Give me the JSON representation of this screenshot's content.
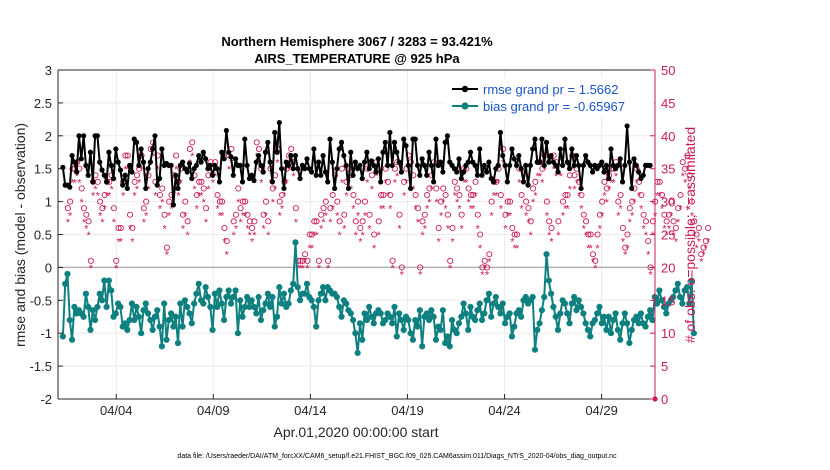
{
  "chart_data": {
    "type": "line",
    "title": "Northern Hemisphere 3067 / 3283 = 93.421%",
    "subtitle": "AIRS_TEMPERATURE @ 925 hPa",
    "xlabel": "Apr.01,2020 00:00:00 start",
    "ylabel": "rmse and bias (model - observation)",
    "y2label": "# of obs: o=possible; *=assimilated",
    "footer": "data file: /Users/raeder/DAI/ATM_forcXX/CAM6_setup/f.e21.FHIST_BGC.f09_025.CAM6assim.011/Diags_NTrS_2020-04/obs_diag_output.nc",
    "xlim": [
      1,
      31.75
    ],
    "ylim": [
      -2,
      3
    ],
    "y2lim": [
      0,
      50
    ],
    "x_ticks": [
      {
        "value": 4,
        "label": "04/04"
      },
      {
        "value": 9,
        "label": "04/09"
      },
      {
        "value": 14,
        "label": "04/14"
      },
      {
        "value": 19,
        "label": "04/19"
      },
      {
        "value": 24,
        "label": "04/24"
      },
      {
        "value": 29,
        "label": "04/29"
      }
    ],
    "y_ticks": [
      "-2",
      "-1.5",
      "-1",
      "-0.5",
      "0",
      "0.5",
      "1",
      "1.5",
      "2",
      "2.5",
      "3"
    ],
    "y2_ticks": [
      "0",
      "5",
      "10",
      "15",
      "20",
      "25",
      "30",
      "35",
      "40",
      "45",
      "50"
    ],
    "legend": [
      {
        "label": "rmse grand pr = 1.5662",
        "color": "#000000"
      },
      {
        "label": "bias grand pr = -0.65967",
        "color": "#0f8080"
      }
    ],
    "colors": {
      "rmse": "#000000",
      "bias": "#0f8080",
      "obs": "#cc1a5c",
      "zero": "#b3b3b3",
      "grid": "#ebebeb"
    },
    "rmse": [
      1.52,
      1.25,
      1.25,
      1.22,
      1.7,
      1.6,
      1.45,
      2.0,
      1.65,
      2.0,
      1.55,
      1.4,
      1.75,
      1.3,
      2.0,
      2.0,
      1.6,
      1.48,
      1.4,
      1.3,
      1.75,
      1.55,
      1.35,
      1.8,
      1.6,
      1.48,
      1.25,
      1.4,
      1.2,
      1.55,
      1.45,
      1.95,
      1.9,
      1.55,
      1.8,
      1.6,
      1.2,
      1.5,
      1.6,
      1.8,
      2.0,
      1.25,
      1.35,
      1.8,
      1.55,
      1.58,
      1.55,
      1.55,
      0.95,
      1.4,
      1.2,
      1.55,
      1.6,
      1.5,
      1.45,
      1.58,
      1.35,
      1.5,
      1.55,
      1.7,
      1.6,
      1.75,
      1.65,
      1.5,
      1.55,
      1.4,
      1.55,
      1.5,
      1.3,
      1.75,
      1.65,
      2.08,
      1.75,
      1.68,
      1.4,
      1.65,
      1.55,
      1.55,
      1.3,
      1.95,
      1.55,
      1.35,
      1.4,
      1.32,
      1.6,
      1.7,
      1.55,
      1.45,
      1.75,
      1.9,
      1.6,
      1.3,
      2.05,
      1.75,
      2.2,
      1.5,
      1.2,
      1.6,
      1.55,
      1.7,
      1.5,
      1.7,
      1.5,
      1.35,
      1.55,
      1.5,
      1.65,
      1.5,
      1.45,
      1.8,
      1.4,
      1.6,
      1.4,
      1.7,
      1.45,
      1.3,
      1.95,
      1.6,
      1.2,
      1.5,
      1.8,
      1.9,
      1.7,
      1.55,
      1.2,
      1.75,
      1.4,
      1.6,
      1.5,
      1.55,
      1.35,
      1.6,
      1.75,
      1.5,
      1.62,
      1.55,
      1.45,
      1.65,
      1.3,
      1.75,
      1.9,
      1.55,
      2.05,
      1.55,
      1.9,
      1.75,
      1.6,
      1.45,
      1.95,
      1.85,
      1.55,
      1.2,
      1.95,
      1.95,
      1.55,
      1.4,
      1.65,
      1.55,
      1.4,
      1.75,
      1.55,
      1.3,
      1.95,
      1.55,
      1.6,
      1.45,
      1.9,
      2.0,
      1.6,
      1.55,
      1.5,
      1.45,
      1.65,
      1.35,
      1.45,
      1.55,
      1.6,
      1.75,
      1.6,
      1.55,
      1.4,
      1.8,
      1.4,
      1.55,
      1.45,
      1.6,
      1.35,
      1.3,
      1.5,
      1.55,
      2.05,
      1.7,
      1.55,
      1.3,
      1.55,
      1.8,
      1.65,
      1.55,
      1.7,
      1.5,
      1.3,
      1.55,
      1.25,
      1.55,
      1.8,
      1.95,
      1.6,
      1.6,
      1.95,
      1.55,
      1.9,
      1.6,
      1.7,
      1.6,
      1.55,
      1.45,
      1.8,
      1.55,
      1.95,
      1.6,
      1.5,
      1.8,
      1.55,
      1.7,
      1.55,
      1.2,
      1.55,
      1.7,
      1.6,
      1.55,
      1.45,
      1.55,
      1.5,
      1.55,
      1.6,
      1.45,
      1.55,
      1.35,
      1.8,
      1.55,
      1.5,
      1.55,
      1.65,
      1.3,
      1.55,
      2.15,
      1.6,
      1.2,
      1.65,
      1.55,
      1.45,
      1.35,
      1.4,
      1.55,
      1.55,
      1.55
    ],
    "bias": [
      -1.05,
      -0.25,
      -0.1,
      -0.8,
      -1.1,
      -0.6,
      -0.7,
      -0.65,
      -0.7,
      -0.75,
      -0.4,
      -0.6,
      -0.95,
      -0.65,
      -0.8,
      -0.6,
      -0.4,
      -0.5,
      -0.2,
      -0.6,
      -0.2,
      -0.35,
      -0.75,
      -0.7,
      -0.55,
      -0.6,
      -0.9,
      -0.85,
      -0.95,
      -0.8,
      -0.55,
      -0.8,
      -0.6,
      -0.75,
      -1.0,
      -0.65,
      -0.55,
      -0.7,
      -0.8,
      -0.95,
      -0.75,
      -0.65,
      -0.9,
      -1.2,
      -0.55,
      -1.1,
      -0.8,
      -0.7,
      -0.9,
      -0.75,
      -1.15,
      -0.55,
      -0.9,
      -0.5,
      -0.6,
      -0.7,
      -0.85,
      -0.55,
      -0.4,
      -0.25,
      -0.5,
      -0.55,
      -0.3,
      -0.45,
      -0.6,
      -0.95,
      -0.4,
      -0.6,
      -0.35,
      -0.55,
      -0.8,
      -0.45,
      -0.35,
      -0.55,
      -0.45,
      -0.35,
      -1.0,
      -0.5,
      -0.75,
      -0.6,
      -0.45,
      -0.6,
      -0.5,
      -0.6,
      -0.7,
      -0.45,
      -0.8,
      -0.65,
      -0.55,
      -0.4,
      -0.6,
      -0.45,
      -0.9,
      -0.75,
      -0.3,
      -0.55,
      -0.4,
      -0.6,
      -0.55,
      -0.35,
      -0.25,
      0.38,
      -0.3,
      -0.5,
      -0.4,
      -0.4,
      -0.25,
      -0.45,
      -0.5,
      -0.6,
      -0.9,
      -0.5,
      -0.4,
      -0.3,
      -0.5,
      -0.3,
      -0.35,
      -0.4,
      -0.4,
      -0.45,
      -0.6,
      -0.75,
      -0.5,
      -0.55,
      -0.65,
      -0.7,
      -0.8,
      -1.0,
      -1.3,
      -0.85,
      -1.1,
      -0.7,
      -0.8,
      -0.6,
      -0.75,
      -0.85,
      -0.7,
      -0.65,
      -0.7,
      -0.85,
      -0.8,
      -0.7,
      -0.75,
      -0.85,
      -0.6,
      -1.05,
      -0.7,
      -0.8,
      -0.95,
      -0.75,
      -0.8,
      -1.0,
      -1.1,
      -0.8,
      -0.9,
      -0.65,
      -1.2,
      -0.75,
      -0.7,
      -0.8,
      -0.65,
      -0.75,
      -1.1,
      -0.9,
      -0.95,
      -0.65,
      -1.15,
      -1.05,
      -1.2,
      -0.8,
      -0.95,
      -1.0,
      -0.85,
      -0.75,
      -0.55,
      -0.7,
      -0.95,
      -0.6,
      -0.75,
      -0.8,
      -0.65,
      -0.55,
      -0.8,
      -0.7,
      -0.5,
      -0.4,
      -0.75,
      -0.55,
      -0.45,
      -0.6,
      -0.7,
      -0.55,
      -0.85,
      -0.75,
      -0.7,
      -1.05,
      -0.9,
      -0.7,
      -0.65,
      -0.75,
      -0.5,
      -0.45,
      -0.55,
      -0.5,
      -0.45,
      -1.25,
      -0.95,
      -0.85,
      -0.65,
      -0.45,
      0.2,
      -0.2,
      -0.4,
      -0.6,
      -0.75,
      -0.95,
      -0.7,
      -0.5,
      -0.55,
      -0.7,
      -0.85,
      -0.55,
      -0.45,
      -0.65,
      -0.5,
      -0.6,
      -0.7,
      -0.85,
      -0.95,
      -1.05,
      -0.85,
      -0.8,
      -0.7,
      -0.6,
      -0.85,
      -0.75,
      -0.95,
      -0.75,
      -1.0,
      -0.8,
      -0.7,
      -0.95,
      -1.1,
      -0.85,
      -0.7,
      -0.85,
      -1.15,
      -0.95,
      -0.8,
      -0.75,
      -0.85,
      -0.7,
      -0.85,
      -0.9,
      -0.75,
      -0.65,
      -0.8,
      -0.45,
      -0.55,
      -0.35,
      -0.5,
      -0.6,
      -0.7,
      -0.55,
      -0.5,
      -0.45,
      -0.35,
      -0.25,
      -0.45,
      -0.55,
      -0.35,
      -0.3,
      -0.55,
      -0.2,
      -1.0
    ],
    "possible": [
      29,
      30,
      35,
      35,
      36,
      35,
      32,
      29,
      28,
      27,
      21,
      33,
      34,
      33,
      30,
      29,
      31,
      33,
      33,
      34,
      29,
      21,
      26,
      26,
      33,
      37,
      37,
      28,
      26,
      33,
      34,
      35,
      37,
      29,
      30,
      34,
      38,
      39,
      33,
      37,
      31,
      32,
      28,
      23,
      30,
      31,
      34,
      37,
      33,
      35,
      28,
      30,
      27,
      38,
      39,
      34,
      31,
      33,
      33,
      32,
      29,
      34,
      36,
      35,
      36,
      31,
      30,
      30,
      26,
      24,
      37,
      38,
      27,
      28,
      32,
      29,
      30,
      30,
      28,
      27,
      26,
      27,
      39,
      38,
      35,
      28,
      30,
      27,
      35,
      32,
      34,
      38,
      30,
      31,
      33,
      35,
      37,
      38,
      36,
      29,
      21,
      21,
      21,
      22,
      21,
      25,
      25,
      27,
      27,
      21,
      28,
      29,
      30,
      21,
      29,
      31,
      34,
      30,
      27,
      35,
      28,
      33,
      35,
      34,
      31,
      27,
      30,
      26,
      27,
      30,
      35,
      28,
      34,
      25,
      36,
      27,
      31,
      31,
      35,
      33,
      31,
      21,
      35,
      36,
      28,
      20,
      33,
      35,
      37,
      36,
      34,
      31,
      29,
      20,
      27,
      28,
      31,
      32,
      34,
      36,
      32,
      26,
      30,
      32,
      31,
      28,
      21,
      26,
      33,
      32,
      31,
      28,
      35,
      35,
      32,
      31,
      31,
      33,
      28,
      25,
      20,
      21,
      20,
      22,
      30,
      33,
      33,
      35,
      31,
      38,
      28,
      30,
      30,
      26,
      25,
      25,
      35,
      31,
      35,
      30,
      29,
      27,
      32,
      33,
      36,
      36,
      35,
      37,
      30,
      27,
      26,
      37,
      36,
      27,
      36,
      30,
      31,
      31,
      34,
      37,
      34,
      35,
      33,
      31,
      28,
      27,
      25,
      25,
      22,
      21,
      25,
      28,
      30,
      33,
      32,
      34,
      35,
      35,
      36,
      30,
      31,
      26,
      23,
      25,
      29,
      30,
      32,
      35,
      33,
      31,
      28,
      27,
      24,
      20,
      27,
      30,
      33,
      33,
      31,
      28,
      27,
      28,
      30,
      27,
      26,
      29,
      31,
      36,
      35,
      37,
      34,
      30,
      27,
      25,
      26,
      22,
      23,
      24,
      26
    ],
    "assimilated": [
      27,
      28,
      33,
      33,
      34,
      33,
      30,
      27,
      26,
      25,
      20,
      31,
      32,
      31,
      28,
      27,
      29,
      31,
      31,
      32,
      27,
      20,
      24,
      24,
      31,
      35,
      35,
      26,
      24,
      31,
      32,
      33,
      35,
      27,
      28,
      32,
      36,
      37,
      31,
      35,
      29,
      30,
      26,
      22,
      28,
      29,
      32,
      35,
      31,
      33,
      26,
      28,
      25,
      36,
      37,
      32,
      29,
      31,
      31,
      30,
      27,
      32,
      34,
      33,
      34,
      29,
      28,
      28,
      24,
      22,
      35,
      36,
      25,
      26,
      30,
      27,
      28,
      28,
      26,
      25,
      24,
      25,
      37,
      36,
      33,
      26,
      28,
      25,
      33,
      30,
      32,
      36,
      28,
      29,
      31,
      33,
      35,
      36,
      34,
      27,
      20,
      20,
      20,
      21,
      20,
      23,
      23,
      25,
      25,
      20,
      26,
      27,
      28,
      20,
      27,
      29,
      32,
      28,
      25,
      33,
      26,
      31,
      33,
      32,
      29,
      25,
      28,
      24,
      25,
      28,
      33,
      26,
      32,
      23,
      34,
      25,
      29,
      29,
      33,
      31,
      29,
      20,
      33,
      34,
      26,
      19,
      31,
      33,
      35,
      34,
      32,
      29,
      27,
      19,
      25,
      26,
      29,
      30,
      32,
      34,
      30,
      24,
      28,
      30,
      29,
      26,
      20,
      24,
      31,
      30,
      29,
      26,
      33,
      33,
      30,
      29,
      29,
      31,
      26,
      23,
      19,
      20,
      19,
      21,
      28,
      31,
      31,
      33,
      29,
      36,
      26,
      28,
      28,
      24,
      23,
      23,
      33,
      29,
      33,
      28,
      27,
      25,
      30,
      31,
      34,
      34,
      33,
      35,
      28,
      25,
      24,
      35,
      34,
      25,
      34,
      28,
      29,
      29,
      32,
      35,
      32,
      33,
      31,
      29,
      26,
      25,
      23,
      23,
      21,
      20,
      23,
      26,
      28,
      31,
      30,
      32,
      33,
      33,
      34,
      28,
      29,
      24,
      22,
      23,
      27,
      28,
      30,
      33,
      31,
      29,
      26,
      25,
      22,
      19,
      25,
      28,
      31,
      31,
      29,
      26,
      25,
      26,
      28,
      25,
      24,
      27,
      29,
      34,
      33,
      35,
      32,
      28,
      25,
      23,
      24,
      21,
      22,
      23,
      24
    ]
  }
}
